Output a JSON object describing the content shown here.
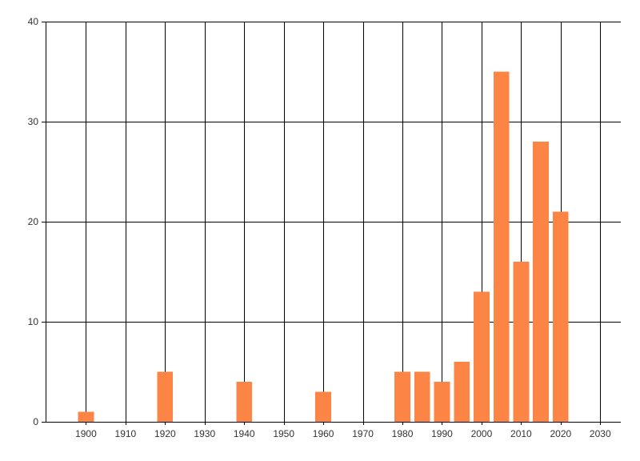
{
  "chart_data": {
    "type": "bar",
    "title": "",
    "xlabel": "",
    "ylabel": "",
    "x": [
      1900,
      1920,
      1940,
      1960,
      1980,
      1985,
      1990,
      1995,
      2000,
      2005,
      2010,
      2015,
      2020
    ],
    "values": [
      1,
      5,
      4,
      3,
      5,
      5,
      4,
      6,
      13,
      35,
      16,
      28,
      21
    ],
    "bar_width_years": 4,
    "xlim": [
      1889.8,
      2035.2
    ],
    "ylim": [
      0,
      40
    ],
    "x_ticks": [
      1900,
      1910,
      1920,
      1930,
      1940,
      1950,
      1960,
      1970,
      1980,
      1990,
      2000,
      2010,
      2020,
      2030
    ],
    "x_tick_labels": [
      "1900",
      "1910",
      "1920",
      "1930",
      "1940",
      "1950",
      "1960",
      "1970",
      "1980",
      "1990",
      "2000",
      "2010",
      "2020",
      "2030"
    ],
    "y_ticks": [
      0,
      10,
      20,
      30,
      40
    ],
    "y_tick_labels": [
      "0",
      "10",
      "20",
      "30",
      "40"
    ],
    "grid": true,
    "legend": false,
    "colors": {
      "bar": "#fc8444",
      "grid": "#000000",
      "axis": "#000000",
      "label": "#333333",
      "background": "#ffffff"
    }
  }
}
